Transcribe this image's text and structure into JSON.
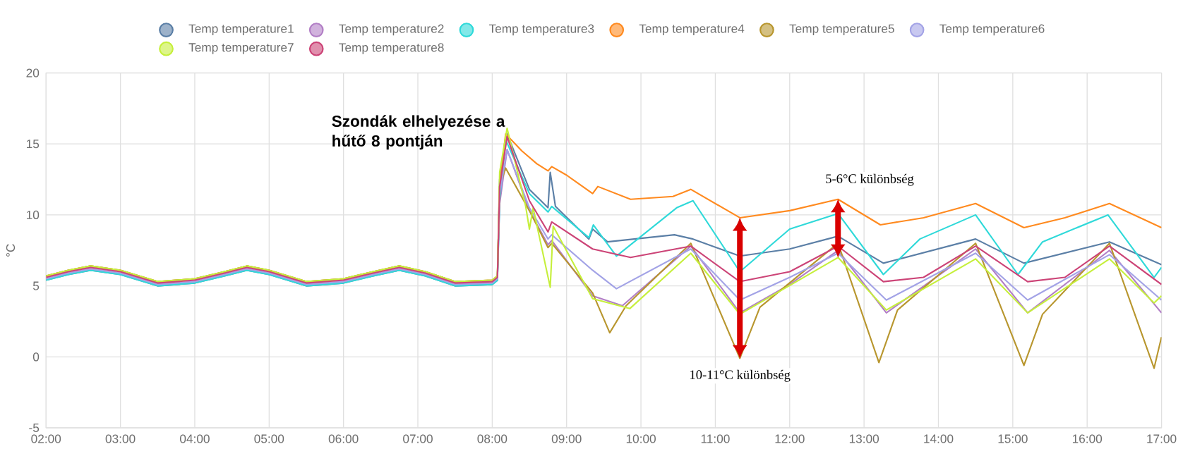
{
  "chart_data": {
    "type": "line",
    "ylabel": "°C",
    "xlim": [
      2,
      17
    ],
    "ylim": [
      -5,
      20
    ],
    "xticks": [
      {
        "value": 2,
        "label": "02:00"
      },
      {
        "value": 3,
        "label": "03:00"
      },
      {
        "value": 4,
        "label": "04:00"
      },
      {
        "value": 5,
        "label": "05:00"
      },
      {
        "value": 6,
        "label": "06:00"
      },
      {
        "value": 7,
        "label": "07:00"
      },
      {
        "value": 8,
        "label": "08:00"
      },
      {
        "value": 9,
        "label": "09:00"
      },
      {
        "value": 10,
        "label": "10:00"
      },
      {
        "value": 11,
        "label": "11:00"
      },
      {
        "value": 12,
        "label": "12:00"
      },
      {
        "value": 13,
        "label": "13:00"
      },
      {
        "value": 14,
        "label": "14:00"
      },
      {
        "value": 15,
        "label": "15:00"
      },
      {
        "value": 16,
        "label": "16:00"
      },
      {
        "value": 17,
        "label": "17:00"
      }
    ],
    "yticks": [
      -5,
      0,
      5,
      10,
      15,
      20
    ],
    "grid": true,
    "legend": "top",
    "marker": "none",
    "line_style": "solid",
    "annotations": [
      "Szondák elhelyezése a hűtő 8 pontján",
      {
        "text": "10-11°C különbség",
        "x": 11.33,
        "y": -0.1
      },
      {
        "text": "5-6°C különbség",
        "x": 12.65,
        "y": 11.1
      }
    ],
    "series": [
      {
        "name": "Temp temperature1",
        "color": "#5b7fa6",
        "x": [
          2.0,
          2.3,
          2.6,
          3.0,
          3.5,
          4.0,
          4.4,
          4.7,
          5.0,
          5.5,
          6.0,
          6.4,
          6.75,
          7.1,
          7.5,
          8.0,
          8.07,
          8.1,
          8.2,
          8.5,
          8.75,
          8.78,
          8.85,
          9.3,
          9.35,
          9.55,
          10.45,
          10.7,
          11.33,
          12.0,
          12.65,
          13.26,
          14.5,
          15.15,
          16.3,
          17.0
        ],
        "values": [
          5.4,
          5.8,
          6.1,
          5.8,
          5.0,
          5.2,
          5.7,
          6.1,
          5.8,
          5.0,
          5.2,
          5.7,
          6.1,
          5.7,
          5.0,
          5.1,
          5.4,
          12.5,
          15.7,
          11.8,
          10.5,
          13.0,
          10.6,
          8.3,
          9.0,
          8.1,
          8.6,
          8.3,
          7.1,
          7.6,
          8.5,
          6.6,
          8.3,
          6.6,
          8.1,
          6.5
        ]
      },
      {
        "name": "Temp temperature2",
        "color": "#b27fc6",
        "x": [
          2.0,
          2.3,
          2.6,
          3.0,
          3.5,
          4.0,
          4.4,
          4.7,
          5.0,
          5.5,
          6.0,
          6.4,
          6.75,
          7.1,
          7.5,
          8.0,
          8.07,
          8.1,
          8.2,
          8.5,
          8.75,
          8.8,
          9.35,
          9.75,
          10.67,
          11.33,
          12.0,
          12.65,
          13.3,
          14.5,
          15.2,
          16.3,
          17.0
        ],
        "values": [
          5.5,
          5.9,
          6.2,
          5.9,
          5.1,
          5.3,
          5.8,
          6.2,
          5.9,
          5.1,
          5.3,
          5.8,
          6.2,
          5.8,
          5.1,
          5.2,
          5.5,
          10.8,
          14.6,
          10.3,
          7.9,
          8.2,
          4.3,
          3.6,
          7.8,
          3.1,
          5.1,
          7.5,
          3.1,
          7.6,
          3.1,
          7.5,
          3.1
        ]
      },
      {
        "name": "Temp temperature3",
        "color": "#2fd9d9",
        "x": [
          2.0,
          2.3,
          2.6,
          3.0,
          3.5,
          4.0,
          4.4,
          4.7,
          5.0,
          5.5,
          6.0,
          6.4,
          6.75,
          7.1,
          7.5,
          8.0,
          8.07,
          8.1,
          8.18,
          8.5,
          8.75,
          8.8,
          9.3,
          9.36,
          9.67,
          10.48,
          10.7,
          11.33,
          12.0,
          12.65,
          13.26,
          13.75,
          14.5,
          15.07,
          15.4,
          16.28,
          16.9,
          17.0
        ],
        "values": [
          5.4,
          5.8,
          6.1,
          5.8,
          5.0,
          5.2,
          5.7,
          6.1,
          5.8,
          5.0,
          5.2,
          5.7,
          6.1,
          5.7,
          5.0,
          5.1,
          5.4,
          11.0,
          15.3,
          11.5,
          10.2,
          10.6,
          8.4,
          9.3,
          7.1,
          10.5,
          11.0,
          6.0,
          9.0,
          10.1,
          5.8,
          8.3,
          10.0,
          5.8,
          8.1,
          10.0,
          5.6,
          6.3
        ]
      },
      {
        "name": "Temp temperature4",
        "color": "#ff8a1f",
        "x": [
          2.0,
          2.3,
          2.6,
          3.0,
          3.5,
          4.0,
          4.4,
          4.7,
          5.0,
          5.5,
          6.0,
          6.4,
          6.75,
          7.1,
          7.5,
          8.0,
          8.07,
          8.1,
          8.18,
          8.4,
          8.6,
          8.75,
          8.8,
          9.0,
          9.35,
          9.42,
          9.86,
          10.43,
          10.67,
          11.33,
          12.0,
          12.65,
          13.22,
          13.8,
          14.5,
          15.15,
          15.7,
          16.3,
          17.0
        ],
        "values": [
          5.7,
          6.1,
          6.4,
          6.1,
          5.3,
          5.5,
          6.0,
          6.4,
          6.1,
          5.3,
          5.5,
          6.0,
          6.4,
          6.0,
          5.3,
          5.4,
          5.7,
          12.0,
          15.7,
          14.5,
          13.6,
          13.1,
          13.4,
          12.8,
          11.5,
          12.0,
          11.1,
          11.3,
          11.8,
          9.8,
          10.3,
          11.1,
          9.3,
          9.8,
          10.8,
          9.1,
          9.8,
          10.8,
          9.1
        ]
      },
      {
        "name": "Temp temperature5",
        "color": "#b8962e",
        "x": [
          2.0,
          2.3,
          2.6,
          3.0,
          3.5,
          4.0,
          4.4,
          4.7,
          5.0,
          5.5,
          6.0,
          6.4,
          6.75,
          7.1,
          7.5,
          8.0,
          8.07,
          8.1,
          8.18,
          8.5,
          8.75,
          8.8,
          9.35,
          9.58,
          9.8,
          10.67,
          11.33,
          11.6,
          12.65,
          13.2,
          13.45,
          14.5,
          15.15,
          15.4,
          16.3,
          16.9,
          17.0
        ],
        "values": [
          5.7,
          6.1,
          6.4,
          6.1,
          5.3,
          5.5,
          6.0,
          6.4,
          6.1,
          5.3,
          5.5,
          6.0,
          6.4,
          6.0,
          5.3,
          5.4,
          5.7,
          12.0,
          13.3,
          10.3,
          7.7,
          8.0,
          4.5,
          1.7,
          3.6,
          8.0,
          -0.1,
          3.5,
          8.0,
          -0.4,
          3.3,
          8.0,
          -0.6,
          3.0,
          8.0,
          -0.8,
          1.4
        ]
      },
      {
        "name": "Temp temperature6",
        "color": "#a3a3e6",
        "x": [
          2.0,
          2.3,
          2.6,
          3.0,
          3.5,
          4.0,
          4.4,
          4.7,
          5.0,
          5.5,
          6.0,
          6.4,
          6.75,
          7.1,
          7.5,
          8.0,
          8.07,
          8.1,
          8.2,
          8.5,
          8.75,
          8.8,
          9.35,
          9.67,
          10.67,
          11.33,
          12.0,
          12.65,
          13.3,
          14.5,
          15.2,
          16.3,
          17.0
        ],
        "values": [
          5.5,
          5.9,
          6.2,
          5.9,
          5.1,
          5.3,
          5.8,
          6.2,
          5.9,
          5.1,
          5.3,
          5.8,
          6.2,
          5.8,
          5.1,
          5.2,
          5.5,
          11.5,
          14.6,
          10.5,
          8.3,
          8.6,
          6.1,
          4.8,
          7.6,
          4.0,
          5.6,
          7.3,
          4.0,
          7.3,
          4.0,
          7.2,
          4.0
        ]
      },
      {
        "name": "Temp temperature7",
        "color": "#c6ef3c",
        "x": [
          2.0,
          2.3,
          2.6,
          3.0,
          3.5,
          4.0,
          4.4,
          4.7,
          5.0,
          5.5,
          6.0,
          6.4,
          6.75,
          7.1,
          7.5,
          8.0,
          8.07,
          8.1,
          8.2,
          8.45,
          8.5,
          8.55,
          8.78,
          8.82,
          9.35,
          9.85,
          10.67,
          11.33,
          12.65,
          13.3,
          14.5,
          15.2,
          16.3,
          16.9,
          17.0
        ],
        "values": [
          5.7,
          6.1,
          6.4,
          6.1,
          5.3,
          5.5,
          6.0,
          6.4,
          6.1,
          5.3,
          5.5,
          6.0,
          6.4,
          6.0,
          5.3,
          5.4,
          5.7,
          13.0,
          16.1,
          10.6,
          9.0,
          10.5,
          4.9,
          9.2,
          4.1,
          3.4,
          7.3,
          3.0,
          7.0,
          3.3,
          6.9,
          3.1,
          6.9,
          3.8,
          4.3
        ]
      },
      {
        "name": "Temp temperature8",
        "color": "#cc4477",
        "x": [
          2.0,
          2.3,
          2.6,
          3.0,
          3.5,
          4.0,
          4.4,
          4.7,
          5.0,
          5.5,
          6.0,
          6.4,
          6.75,
          7.1,
          7.5,
          8.0,
          8.07,
          8.1,
          8.2,
          8.5,
          8.75,
          8.8,
          9.35,
          9.86,
          10.67,
          11.33,
          12.0,
          12.65,
          13.26,
          13.8,
          14.5,
          15.2,
          15.7,
          16.3,
          17.0
        ],
        "values": [
          5.6,
          6.0,
          6.3,
          6.0,
          5.2,
          5.4,
          5.9,
          6.3,
          6.0,
          5.2,
          5.4,
          5.9,
          6.3,
          5.9,
          5.2,
          5.3,
          5.6,
          12.0,
          15.5,
          11.0,
          8.8,
          9.5,
          7.6,
          7.0,
          7.8,
          5.3,
          6.0,
          7.8,
          5.3,
          5.6,
          7.8,
          5.3,
          5.6,
          7.8,
          5.1
        ]
      }
    ]
  }
}
